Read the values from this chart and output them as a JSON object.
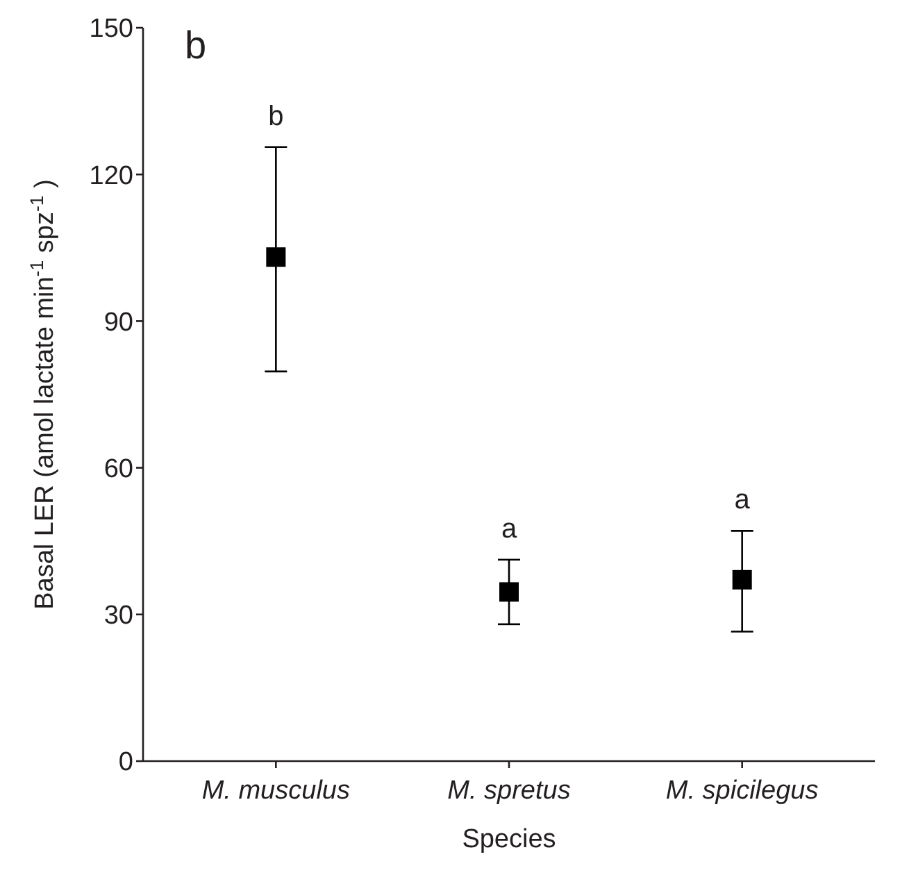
{
  "chart_data": {
    "type": "scatter",
    "ylabel": "Basal LER (amol lactate min$^{-1}$ spz$^{-1}$)",
    "xlabel": "Species",
    "categories": [
      "M. musculus",
      "M. spretus",
      "M. spicilegus"
    ],
    "series": [
      {
        "color": "#000000",
        "values": [
          103.1,
          34.6,
          37.1
        ],
        "errors": [
          [
            79.7,
            125.6
          ],
          [
            28.0,
            41.2
          ],
          [
            26.5,
            47.1
          ]
        ]
      }
    ],
    "marker": "square",
    "ylim": [
      0,
      150
    ],
    "yticks": [
      0,
      30,
      60,
      90,
      120,
      150
    ],
    "grid": false,
    "annotations": [
      "b",
      "b",
      "a",
      "a"
    ]
  }
}
